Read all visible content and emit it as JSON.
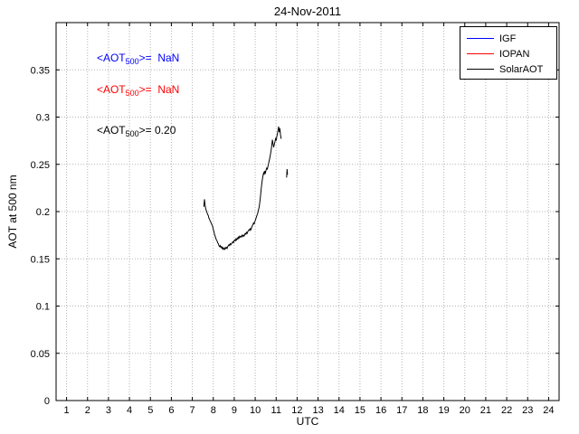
{
  "figure": {
    "background": "#ffffff"
  },
  "chart_data": {
    "type": "line",
    "title": "24-Nov-2011",
    "xlabel": "UTC",
    "ylabel": "AOT at 500 nm",
    "xlim": [
      0.5,
      24.5
    ],
    "ylim": [
      0,
      0.4
    ],
    "xtick_labels": [
      "1",
      "2",
      "3",
      "4",
      "5",
      "6",
      "7",
      "8",
      "9",
      "10",
      "11",
      "12",
      "13",
      "14",
      "15",
      "16",
      "17",
      "18",
      "19",
      "20",
      "21",
      "22",
      "23",
      "24"
    ],
    "ytick_labels": [
      "0",
      "0.05",
      "0.1",
      "0.15",
      "0.2",
      "0.25",
      "0.3",
      "0.35"
    ],
    "grid": "dotted",
    "grid_color": "#b3b3b3",
    "axis_color": "#000000",
    "legend": {
      "position": "top-right",
      "entries": [
        {
          "label": "IGF",
          "color": "#0000ff"
        },
        {
          "label": "IOPAN",
          "color": "#ff0000"
        },
        {
          "label": "SolarAOT",
          "color": "#000000"
        }
      ]
    },
    "annotations": [
      {
        "pre": "<AOT",
        "sub": "500",
        "post": ">=  NaN",
        "color": "#0000ff",
        "x": 2.44,
        "y": 0.362
      },
      {
        "pre": "<AOT",
        "sub": "500",
        "post": ">=  NaN",
        "color": "#ff0000",
        "x": 2.44,
        "y": 0.328
      },
      {
        "pre": "<AOT",
        "sub": "500",
        "post": ">= 0.20",
        "color": "#000000",
        "x": 2.44,
        "y": 0.285
      }
    ],
    "series": [
      {
        "name": "IGF",
        "color": "#0000ff",
        "segments": []
      },
      {
        "name": "IOPAN",
        "color": "#ff0000",
        "segments": []
      },
      {
        "name": "SolarAOT",
        "color": "#000000",
        "segments": [
          [
            [
              7.55,
              0.205
            ],
            [
              7.58,
              0.213
            ],
            [
              7.61,
              0.207
            ],
            [
              7.64,
              0.203
            ],
            [
              7.67,
              0.201
            ],
            [
              7.7,
              0.199
            ],
            [
              7.73,
              0.197
            ],
            [
              7.76,
              0.196
            ],
            [
              7.79,
              0.193
            ],
            [
              7.82,
              0.192
            ],
            [
              7.85,
              0.19
            ],
            [
              7.88,
              0.189
            ],
            [
              7.91,
              0.187
            ],
            [
              7.94,
              0.186
            ],
            [
              7.97,
              0.184
            ],
            [
              8.0,
              0.181
            ],
            [
              8.03,
              0.179
            ],
            [
              8.06,
              0.176
            ],
            [
              8.09,
              0.174
            ],
            [
              8.12,
              0.172
            ],
            [
              8.15,
              0.17
            ],
            [
              8.18,
              0.169
            ],
            [
              8.21,
              0.167
            ],
            [
              8.24,
              0.166
            ],
            [
              8.27,
              0.164
            ],
            [
              8.3,
              0.163
            ],
            [
              8.33,
              0.164
            ],
            [
              8.36,
              0.162
            ],
            [
              8.39,
              0.163
            ],
            [
              8.42,
              0.161
            ],
            [
              8.45,
              0.162
            ],
            [
              8.48,
              0.16
            ],
            [
              8.51,
              0.161
            ],
            [
              8.54,
              0.16
            ],
            [
              8.57,
              0.162
            ],
            [
              8.6,
              0.161
            ],
            [
              8.63,
              0.162
            ],
            [
              8.66,
              0.161
            ],
            [
              8.69,
              0.163
            ],
            [
              8.72,
              0.164
            ],
            [
              8.75,
              0.165
            ],
            [
              8.78,
              0.164
            ],
            [
              8.81,
              0.166
            ],
            [
              8.84,
              0.165
            ],
            [
              8.87,
              0.166
            ],
            [
              8.9,
              0.167
            ],
            [
              8.93,
              0.168
            ],
            [
              8.96,
              0.167
            ],
            [
              8.99,
              0.169
            ],
            [
              9.02,
              0.17
            ],
            [
              9.05,
              0.169
            ],
            [
              9.08,
              0.171
            ],
            [
              9.11,
              0.17
            ],
            [
              9.14,
              0.172
            ],
            [
              9.17,
              0.171
            ],
            [
              9.2,
              0.173
            ],
            [
              9.23,
              0.172
            ],
            [
              9.26,
              0.174
            ],
            [
              9.29,
              0.173
            ],
            [
              9.32,
              0.174
            ],
            [
              9.35,
              0.173
            ],
            [
              9.38,
              0.175
            ],
            [
              9.41,
              0.174
            ],
            [
              9.44,
              0.175
            ],
            [
              9.47,
              0.174
            ],
            [
              9.5,
              0.176
            ],
            [
              9.53,
              0.177
            ],
            [
              9.56,
              0.176
            ],
            [
              9.59,
              0.178
            ],
            [
              9.62,
              0.177
            ],
            [
              9.65,
              0.179
            ],
            [
              9.68,
              0.18
            ],
            [
              9.71,
              0.181
            ],
            [
              9.74,
              0.18
            ],
            [
              9.77,
              0.182
            ],
            [
              9.8,
              0.181
            ],
            [
              9.83,
              0.183
            ],
            [
              9.86,
              0.185
            ],
            [
              9.89,
              0.186
            ],
            [
              9.92,
              0.188
            ],
            [
              9.95,
              0.187
            ],
            [
              9.98,
              0.189
            ],
            [
              10.01,
              0.191
            ],
            [
              10.04,
              0.193
            ],
            [
              10.07,
              0.195
            ],
            [
              10.1,
              0.197
            ],
            [
              10.13,
              0.199
            ],
            [
              10.16,
              0.202
            ],
            [
              10.19,
              0.205
            ],
            [
              10.22,
              0.21
            ],
            [
              10.25,
              0.216
            ],
            [
              10.28,
              0.223
            ],
            [
              10.31,
              0.229
            ],
            [
              10.34,
              0.234
            ],
            [
              10.37,
              0.238
            ],
            [
              10.4,
              0.241
            ],
            [
              10.43,
              0.239
            ],
            [
              10.46,
              0.243
            ],
            [
              10.49,
              0.241
            ],
            [
              10.52,
              0.244
            ],
            [
              10.55,
              0.246
            ],
            [
              10.58,
              0.245
            ],
            [
              10.61,
              0.248
            ],
            [
              10.64,
              0.251
            ],
            [
              10.67,
              0.254
            ],
            [
              10.7,
              0.257
            ],
            [
              10.73,
              0.261
            ],
            [
              10.76,
              0.265
            ],
            [
              10.79,
              0.27
            ],
            [
              10.82,
              0.276
            ],
            [
              10.85,
              0.272
            ],
            [
              10.88,
              0.268
            ],
            [
              10.91,
              0.271
            ],
            [
              10.94,
              0.274
            ],
            [
              10.97,
              0.277
            ],
            [
              11.0,
              0.275
            ],
            [
              11.03,
              0.279
            ],
            [
              11.06,
              0.282
            ],
            [
              11.09,
              0.286
            ],
            [
              11.12,
              0.29
            ],
            [
              11.15,
              0.284
            ],
            [
              11.18,
              0.288
            ],
            [
              11.21,
              0.281
            ],
            [
              11.24,
              0.277
            ]
          ],
          [
            [
              11.5,
              0.236
            ],
            [
              11.52,
              0.245
            ],
            [
              11.54,
              0.239
            ]
          ]
        ]
      }
    ]
  }
}
